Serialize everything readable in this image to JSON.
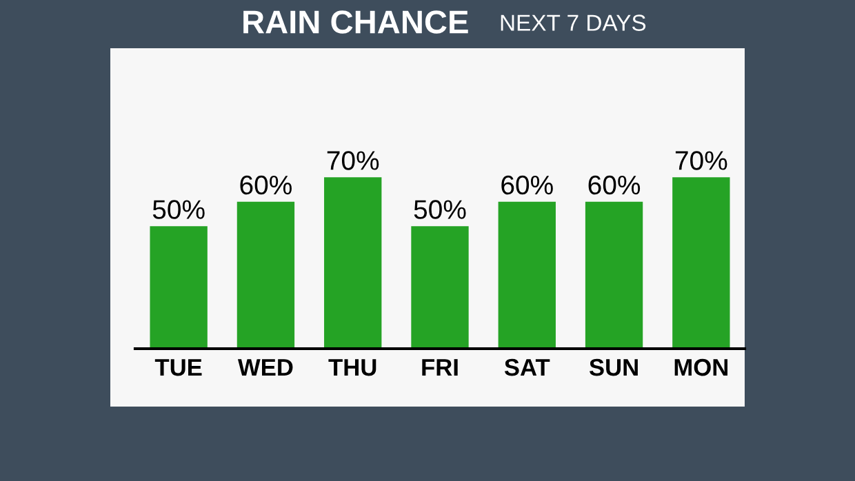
{
  "chart_data": {
    "type": "bar",
    "title": "RAIN CHANCE",
    "subtitle": "NEXT 7 DAYS",
    "categories": [
      "TUE",
      "WED",
      "THU",
      "FRI",
      "SAT",
      "SUN",
      "MON"
    ],
    "values": [
      50,
      60,
      70,
      50,
      60,
      60,
      70
    ],
    "value_labels": [
      "50%",
      "60%",
      "70%",
      "50%",
      "60%",
      "60%",
      "70%"
    ],
    "color": "#25a325"
  }
}
